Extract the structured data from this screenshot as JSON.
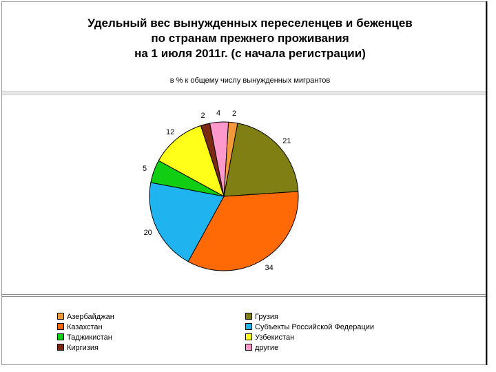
{
  "title_lines": [
    "Удельный вес вынужденных переселенцев и беженцев",
    "по странам прежнего проживания",
    "на 1 июля 2011г. (с начала регистрации)"
  ],
  "subtitle": "в % к общему числу вынужденных мигрантов",
  "chart_data": {
    "type": "pie",
    "title": "Удельный вес вынужденных переселенцев и беженцев по странам прежнего проживания на 1 июля 2011г. (с начала регистрации)",
    "subtitle": "в % к общему числу вынужденных мигрантов",
    "slices": [
      {
        "name": "Азербайджан",
        "value": 2,
        "label": "2",
        "color": "#F59A3C"
      },
      {
        "name": "Грузия",
        "value": 21,
        "label": "21",
        "color": "#7F7F13"
      },
      {
        "name": "Казахстан",
        "value": 34,
        "label": "34",
        "color": "#FF6A07"
      },
      {
        "name": "Субъекты Российской Федерации",
        "value": 20,
        "label": "20",
        "color": "#1FB4F0"
      },
      {
        "name": "Таджикистан",
        "value": 5,
        "label": "5",
        "color": "#12CE12"
      },
      {
        "name": "Узбекистан",
        "value": 12,
        "label": "12",
        "color": "#FFFF1A"
      },
      {
        "name": "Киргизия",
        "value": 2,
        "label": "2",
        "color": "#7A2A12"
      },
      {
        "name": "другие",
        "value": 4,
        "label": "4",
        "color": "#FF99CC"
      }
    ],
    "legend_order": [
      "Азербайджан",
      "Грузия",
      "Казахстан",
      "Субъекты Российской Федерации",
      "Таджикистан",
      "Узбекистан",
      "Киргизия",
      "другие"
    ],
    "legend_placement": "bottom",
    "start_angle_deg": 3.5
  }
}
